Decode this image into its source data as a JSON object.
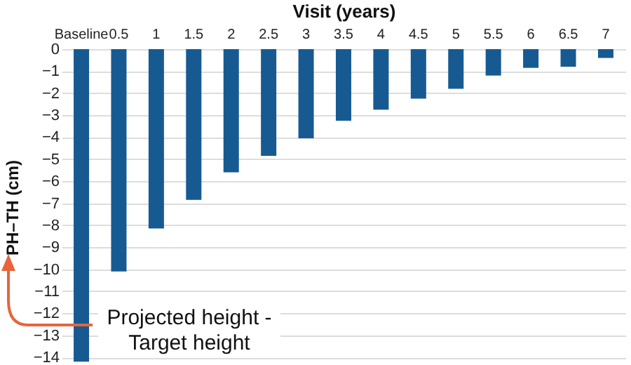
{
  "chart_data": {
    "type": "bar",
    "xlabel": "Visit (years)",
    "ylabel": "PH–TH (cm)",
    "categories": [
      "Baseline",
      "0.5",
      "1",
      "1.5",
      "2",
      "2.5",
      "3",
      "3.5",
      "4",
      "4.5",
      "5",
      "5.5",
      "6",
      "6.5",
      "7"
    ],
    "values": [
      -14.2,
      -10.1,
      -8.15,
      -6.85,
      -5.6,
      -4.85,
      -4.05,
      -3.25,
      -2.75,
      -2.25,
      -1.8,
      -1.2,
      -0.85,
      -0.8,
      -0.4
    ],
    "color": "#175a91",
    "ylim": [
      -14.35,
      0
    ],
    "yticks": [
      -14,
      -13,
      -12,
      -11,
      -10,
      -9,
      -8,
      -7,
      -6,
      -5,
      -4,
      -3,
      -2,
      -1,
      0
    ],
    "grid": "y",
    "annotations": [
      "Projected height - Target height"
    ]
  }
}
